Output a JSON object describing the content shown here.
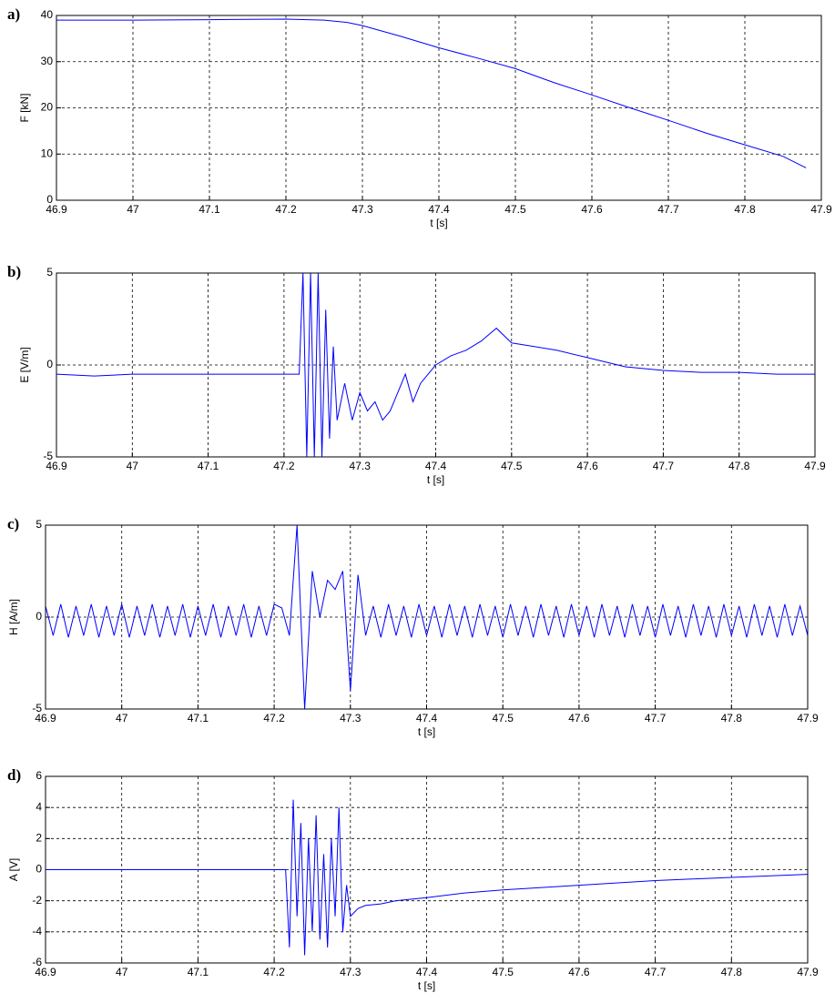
{
  "chart_data": [
    {
      "type": "line",
      "panel_label": "a)",
      "xlabel": "t [s]",
      "ylabel": "F [kN]",
      "color": "#0000ff",
      "grid": true,
      "xlim": [
        46.9,
        47.9
      ],
      "ylim": [
        0,
        40
      ],
      "xticks": [
        46.9,
        47,
        47.1,
        47.2,
        47.3,
        47.4,
        47.5,
        47.6,
        47.7,
        47.8,
        47.9
      ],
      "yticks": [
        0,
        10,
        20,
        30,
        40
      ],
      "x": [
        46.9,
        47,
        47.1,
        47.2,
        47.25,
        47.28,
        47.3,
        47.35,
        47.4,
        47.45,
        47.5,
        47.55,
        47.6,
        47.65,
        47.7,
        47.75,
        47.8,
        47.85,
        47.88
      ],
      "values": [
        39,
        39,
        39.1,
        39.2,
        39,
        38.5,
        37.8,
        35.5,
        33,
        30.8,
        28.5,
        25.5,
        22.8,
        20,
        17.3,
        14.5,
        12,
        9.5,
        7
      ]
    },
    {
      "type": "line",
      "panel_label": "b)",
      "xlabel": "t [s]",
      "ylabel": "E [V/m]",
      "color": "#0000ff",
      "grid": true,
      "xlim": [
        46.9,
        47.9
      ],
      "ylim": [
        -5,
        5
      ],
      "xticks": [
        46.9,
        47,
        47.1,
        47.2,
        47.3,
        47.4,
        47.5,
        47.6,
        47.7,
        47.8,
        47.9
      ],
      "yticks": [
        -5,
        0,
        5
      ],
      "x": [
        46.9,
        46.95,
        47,
        47.05,
        47.1,
        47.15,
        47.2,
        47.22,
        47.225,
        47.23,
        47.235,
        47.24,
        47.245,
        47.25,
        47.255,
        47.26,
        47.265,
        47.27,
        47.28,
        47.29,
        47.3,
        47.31,
        47.32,
        47.33,
        47.34,
        47.35,
        47.36,
        47.37,
        47.38,
        47.39,
        47.4,
        47.42,
        47.44,
        47.46,
        47.48,
        47.5,
        47.53,
        47.56,
        47.6,
        47.65,
        47.7,
        47.75,
        47.8,
        47.85,
        47.9
      ],
      "values": [
        -0.5,
        -0.6,
        -0.5,
        -0.5,
        -0.5,
        -0.5,
        -0.5,
        -0.5,
        5,
        -5,
        5,
        -5,
        5,
        -5,
        3,
        -4,
        1,
        -3,
        -1,
        -3,
        -1.5,
        -2.5,
        -2,
        -3,
        -2.5,
        -1.5,
        -0.5,
        -2,
        -1,
        -0.5,
        0,
        0.5,
        0.8,
        1.3,
        2,
        1.2,
        1,
        0.8,
        0.4,
        -0.1,
        -0.3,
        -0.4,
        -0.4,
        -0.5,
        -0.5
      ]
    },
    {
      "type": "line",
      "panel_label": "c)",
      "xlabel": "t [s]",
      "ylabel": "H [A/m]",
      "color": "#0000ff",
      "grid": true,
      "xlim": [
        46.9,
        47.9
      ],
      "ylim": [
        -5,
        5
      ],
      "xticks": [
        46.9,
        47,
        47.1,
        47.2,
        47.3,
        47.4,
        47.5,
        47.6,
        47.7,
        47.8,
        47.9
      ],
      "yticks": [
        -5,
        0,
        5
      ],
      "x": [
        46.9,
        46.91,
        46.92,
        46.93,
        46.94,
        46.95,
        46.96,
        46.97,
        46.98,
        46.99,
        47,
        47.01,
        47.02,
        47.03,
        47.04,
        47.05,
        47.06,
        47.07,
        47.08,
        47.09,
        47.1,
        47.11,
        47.12,
        47.13,
        47.14,
        47.15,
        47.16,
        47.17,
        47.18,
        47.19,
        47.2,
        47.21,
        47.22,
        47.23,
        47.24,
        47.25,
        47.26,
        47.27,
        47.28,
        47.29,
        47.3,
        47.31,
        47.32,
        47.33,
        47.34,
        47.35,
        47.36,
        47.37,
        47.38,
        47.39,
        47.4,
        47.41,
        47.42,
        47.43,
        47.44,
        47.45,
        47.46,
        47.47,
        47.48,
        47.49,
        47.5,
        47.51,
        47.52,
        47.53,
        47.54,
        47.55,
        47.56,
        47.57,
        47.58,
        47.59,
        47.6,
        47.61,
        47.62,
        47.63,
        47.64,
        47.65,
        47.66,
        47.67,
        47.68,
        47.69,
        47.7,
        47.71,
        47.72,
        47.73,
        47.74,
        47.75,
        47.76,
        47.77,
        47.78,
        47.79,
        47.8,
        47.81,
        47.82,
        47.83,
        47.84,
        47.85,
        47.86,
        47.87,
        47.88,
        47.89,
        47.9
      ],
      "values": [
        0.6,
        -1,
        0.7,
        -1.1,
        0.6,
        -1,
        0.7,
        -1.1,
        0.6,
        -1,
        0.7,
        -1.1,
        0.6,
        -1,
        0.7,
        -1.1,
        0.6,
        -1,
        0.7,
        -1.1,
        0.6,
        -1,
        0.7,
        -1.1,
        0.6,
        -1,
        0.7,
        -1.1,
        0.6,
        -1,
        0.7,
        0.5,
        -1,
        5,
        -5,
        2.5,
        0,
        2,
        1.5,
        2.5,
        -4,
        2.3,
        -1,
        0.6,
        -1.1,
        0.7,
        -1,
        0.6,
        -1.1,
        0.7,
        -1,
        0.6,
        -1.1,
        0.7,
        -1,
        0.6,
        -1.1,
        0.7,
        -1,
        0.6,
        -1.1,
        0.7,
        -1,
        0.6,
        -1.1,
        0.7,
        -1,
        0.6,
        -1.1,
        0.7,
        -1,
        0.6,
        -1.1,
        0.7,
        -1,
        0.6,
        -1.1,
        0.7,
        -1,
        0.6,
        -1.1,
        0.7,
        -1,
        0.6,
        -1.1,
        0.7,
        -1,
        0.6,
        -1.1,
        0.7,
        -1,
        0.6,
        -1.1,
        0.7,
        -1,
        0.6,
        -1.1,
        0.7,
        -1,
        0.6,
        -1
      ]
    },
    {
      "type": "line",
      "panel_label": "d)",
      "xlabel": "t [s]",
      "ylabel": "A [V]",
      "color": "#0000ff",
      "grid": true,
      "xlim": [
        46.9,
        47.9
      ],
      "ylim": [
        -6,
        6
      ],
      "xticks": [
        46.9,
        47,
        47.1,
        47.2,
        47.3,
        47.4,
        47.5,
        47.6,
        47.7,
        47.8,
        47.9
      ],
      "yticks": [
        -6,
        -4,
        -2,
        0,
        2,
        4,
        6
      ],
      "x": [
        46.9,
        46.91,
        47,
        47.1,
        47.2,
        47.215,
        47.22,
        47.225,
        47.23,
        47.235,
        47.24,
        47.245,
        47.25,
        47.255,
        47.26,
        47.265,
        47.27,
        47.275,
        47.28,
        47.285,
        47.29,
        47.295,
        47.3,
        47.31,
        47.32,
        47.34,
        47.36,
        47.4,
        47.45,
        47.5,
        47.6,
        47.7,
        47.8,
        47.9
      ],
      "values": [
        0,
        0,
        0,
        0,
        0,
        0,
        -5,
        4.5,
        -3,
        3,
        -5.5,
        2,
        -4,
        3.5,
        -4.5,
        1,
        -5,
        2,
        -3,
        4,
        -4,
        -1,
        -3,
        -2.5,
        -2.3,
        -2.2,
        -2,
        -1.8,
        -1.5,
        -1.3,
        -1,
        -0.7,
        -0.5,
        -0.3
      ]
    }
  ]
}
